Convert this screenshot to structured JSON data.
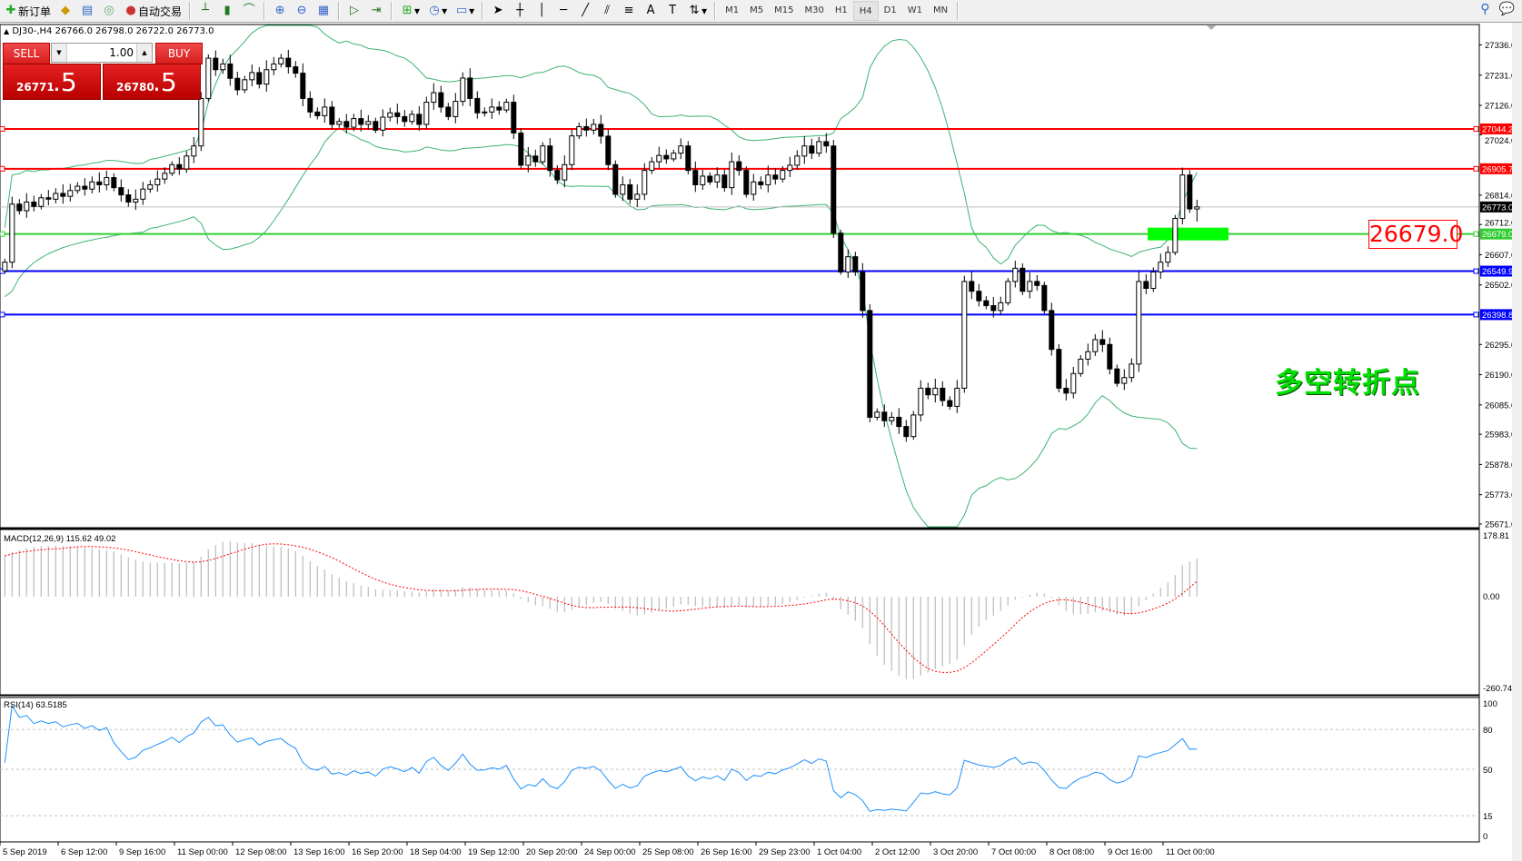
{
  "toolbar": {
    "new_order": "新订单",
    "auto_trading": "自动交易",
    "timeframes": [
      "M1",
      "M5",
      "M15",
      "M30",
      "H1",
      "H4",
      "D1",
      "W1",
      "MN"
    ],
    "active_timeframe": "H4"
  },
  "chart": {
    "symbol_info": "DJ30-,H4",
    "ohlc": "26766.0 26798.0 26722.0 26773.0"
  },
  "trade_panel": {
    "sell_label": "SELL",
    "buy_label": "BUY",
    "lot": "1.00",
    "sell_price_main": "26771",
    "sell_price_frac": ".5",
    "buy_price_main": "26780",
    "buy_price_frac": ".5"
  },
  "price_axis": {
    "ticks": [
      "27336.0",
      "27231.0",
      "27126.0",
      "27024.0",
      "26814.0",
      "26712.0",
      "26607.0",
      "26502.0",
      "26295.0",
      "26190.0",
      "26085.0",
      "25983.0",
      "25878.0",
      "25773.0",
      "25671.0"
    ]
  },
  "levels": [
    {
      "value": "27044.2",
      "color": "#ff0000"
    },
    {
      "value": "26905.7",
      "color": "#ff0000"
    },
    {
      "value": "26679.0",
      "color": "#32cd32"
    },
    {
      "value": "26549.9",
      "color": "#0000ff"
    },
    {
      "value": "26398.8",
      "color": "#0000ff"
    }
  ],
  "current_price": "26773.0",
  "annotation": {
    "price_label": "26679.0",
    "text": "多空转折点",
    "zone_color": "#00ff00"
  },
  "macd": {
    "label": "MACD(12,26,9) 115.62 49.02",
    "ticks": [
      "178.81",
      "0.00",
      "-260.74"
    ]
  },
  "rsi": {
    "label": "RSI(14) 63.5185",
    "ticks": [
      "100",
      "80",
      "50",
      "15",
      "0"
    ],
    "levels": [
      80,
      50,
      15
    ]
  },
  "time_axis": [
    "5 Sep 2019",
    "6 Sep 12:00",
    "9 Sep 16:00",
    "11 Sep 00:00",
    "12 Sep 08:00",
    "13 Sep 16:00",
    "16 Sep 20:00",
    "18 Sep 04:00",
    "19 Sep 12:00",
    "20 Sep 20:00",
    "24 Sep 00:00",
    "25 Sep 08:00",
    "26 Sep 16:00",
    "29 Sep 23:00",
    "1 Oct 04:00",
    "2 Oct 12:00",
    "3 Oct 20:00",
    "7 Oct 00:00",
    "8 Oct 08:00",
    "9 Oct 16:00",
    "11 Oct 00:00"
  ],
  "chart_data": {
    "type": "candlestick",
    "indicators": [
      "Bollinger Bands(20,2)",
      "MACD(12,26,9)",
      "RSI(14)"
    ],
    "colors": {
      "bands": "#3cb371",
      "macd_hist": "#c0c0c0",
      "macd_signal": "#ff0000",
      "rsi": "#1e90ff"
    },
    "last_bar": {
      "open": 26766.0,
      "high": 26798.0,
      "low": 26722.0,
      "close": 26773.0
    },
    "closes": [
      26581,
      26783,
      26760,
      26790,
      26775,
      26805,
      26800,
      26820,
      26810,
      26830,
      26845,
      26835,
      26860,
      26850,
      26875,
      26840,
      26815,
      26790,
      26800,
      26835,
      26850,
      26870,
      26890,
      26920,
      26905,
      26950,
      26985,
      27150,
      27290,
      27250,
      27270,
      27220,
      27180,
      27215,
      27240,
      27200,
      27250,
      27270,
      27290,
      27260,
      27238,
      27150,
      27103,
      27090,
      27120,
      27060,
      27070,
      27050,
      27080,
      27060,
      27070,
      27040,
      27085,
      27100,
      27087,
      27070,
      27095,
      27060,
      27137,
      27170,
      27120,
      27087,
      27140,
      27221,
      27150,
      27100,
      27103,
      27120,
      27110,
      27137,
      27030,
      26918,
      26950,
      26930,
      26985,
      26900,
      26867,
      26920,
      27020,
      27052,
      27040,
      27060,
      27019,
      26920,
      26817,
      26850,
      26800,
      26817,
      26900,
      26930,
      26952,
      26940,
      26960,
      26985,
      26900,
      26850,
      26880,
      26860,
      26884,
      26840,
      26930,
      26900,
      26817,
      26860,
      26850,
      26884,
      26870,
      26900,
      26918,
      26950,
      26985,
      26960,
      27000,
      26985,
      26682,
      26547,
      26600,
      26547,
      26413,
      26042,
      26060,
      26030,
      26042,
      26010,
      25975,
      26050,
      26143,
      26120,
      26143,
      26100,
      26080,
      26143,
      26514,
      26480,
      26447,
      26430,
      26413,
      26440,
      26514,
      26560,
      26480,
      26514,
      26500,
      26413,
      26278,
      26143,
      26126,
      26194,
      26244,
      26270,
      26312,
      26295,
      26210,
      26160,
      26180,
      26227,
      26514,
      26490,
      26547,
      26581,
      26615,
      26733,
      26884,
      26766,
      26773
    ]
  }
}
